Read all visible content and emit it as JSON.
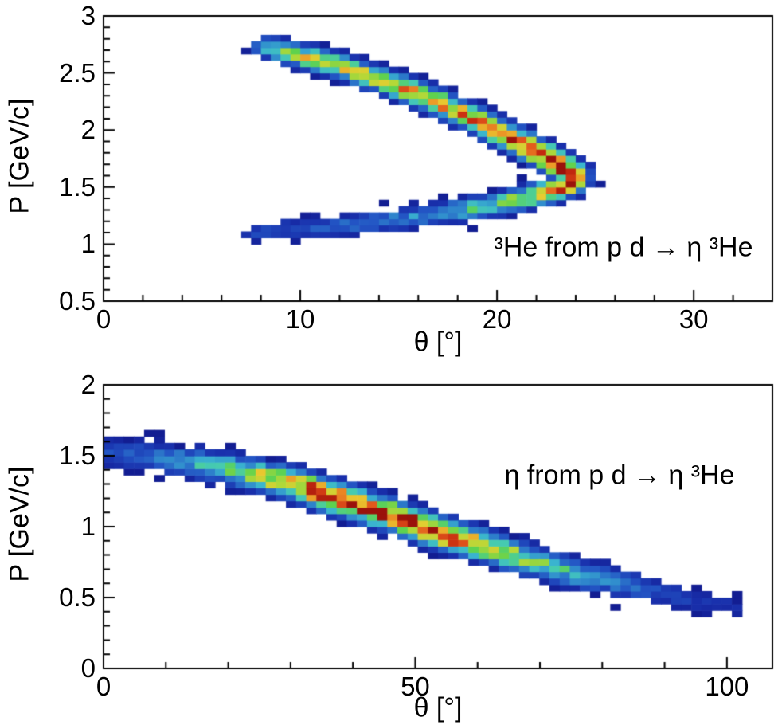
{
  "figure": {
    "background": "#ffffff",
    "axis_color": "#000000",
    "text_color": "#000000"
  },
  "palette": {
    "name": "root-rainbow",
    "stops": [
      [
        0.0,
        "#10188c"
      ],
      [
        0.1,
        "#1930ac"
      ],
      [
        0.2,
        "#2355c4"
      ],
      [
        0.3,
        "#2f86cc"
      ],
      [
        0.38,
        "#3ab4cf"
      ],
      [
        0.46,
        "#47ccad"
      ],
      [
        0.54,
        "#5ed24e"
      ],
      [
        0.64,
        "#b4d838"
      ],
      [
        0.73,
        "#e8cc30"
      ],
      [
        0.8,
        "#eb9426"
      ],
      [
        0.87,
        "#e2561b"
      ],
      [
        0.94,
        "#c62a10"
      ],
      [
        1.0,
        "#9a120b"
      ]
    ]
  },
  "chart_data": [
    {
      "type": "heatmap",
      "particle": "3He",
      "annotation": "³He from p d → η ³He",
      "xlabel": "θ [°]",
      "ylabel": "P [GeV/c]",
      "xlim": [
        0,
        34
      ],
      "ylim": [
        0.5,
        3
      ],
      "x_ticks": [
        {
          "v": 0,
          "label": "0"
        },
        {
          "v": 10,
          "label": "10"
        },
        {
          "v": 20,
          "label": "20"
        },
        {
          "v": 30,
          "label": "30"
        }
      ],
      "x_minor_step": 2,
      "y_ticks": [
        {
          "v": 0.5,
          "label": "0.5"
        },
        {
          "v": 1,
          "label": "1"
        },
        {
          "v": 1.5,
          "label": "1.5"
        },
        {
          "v": 2,
          "label": "2"
        },
        {
          "v": 2.5,
          "label": "2.5"
        },
        {
          "v": 3,
          "label": "3"
        }
      ],
      "y_minor_step": 0.1,
      "bins": {
        "nx": 68,
        "ny": 45
      },
      "band_sigma": {
        "theta": 0.55,
        "p": 0.06
      },
      "ridge_points": [
        [
          8.4,
          2.72,
          0.4
        ],
        [
          9.4,
          2.68,
          0.55
        ],
        [
          10.4,
          2.64,
          0.65
        ],
        [
          11.4,
          2.59,
          0.62
        ],
        [
          12.4,
          2.54,
          0.68
        ],
        [
          13.4,
          2.48,
          0.74
        ],
        [
          14.4,
          2.42,
          0.7
        ],
        [
          15.4,
          2.36,
          0.72
        ],
        [
          16.4,
          2.29,
          0.76
        ],
        [
          17.4,
          2.21,
          0.78
        ],
        [
          18.4,
          2.13,
          0.82
        ],
        [
          19.4,
          2.05,
          0.86
        ],
        [
          20.4,
          1.96,
          0.9
        ],
        [
          21.4,
          1.87,
          0.94
        ],
        [
          22.3,
          1.79,
          0.98
        ],
        [
          23.1,
          1.71,
          1.0
        ],
        [
          23.7,
          1.63,
          1.0
        ],
        [
          23.8,
          1.57,
          0.95
        ],
        [
          23.3,
          1.5,
          0.85
        ],
        [
          22.4,
          1.45,
          0.7
        ],
        [
          21.2,
          1.4,
          0.58
        ],
        [
          19.8,
          1.35,
          0.48
        ],
        [
          18.2,
          1.3,
          0.4
        ],
        [
          16.6,
          1.26,
          0.33
        ],
        [
          15.0,
          1.22,
          0.28
        ],
        [
          13.4,
          1.19,
          0.24
        ],
        [
          11.8,
          1.16,
          0.21
        ],
        [
          10.2,
          1.14,
          0.18
        ],
        [
          8.8,
          1.12,
          0.16
        ],
        [
          7.8,
          1.11,
          0.15
        ]
      ]
    },
    {
      "type": "heatmap",
      "particle": "eta",
      "annotation": "η from p d → η ³He",
      "xlabel": "θ [°]",
      "ylabel": "P [GeV/c]",
      "xlim": [
        0,
        107.3
      ],
      "ylim": [
        0,
        2
      ],
      "x_ticks": [
        {
          "v": 0,
          "label": "0"
        },
        {
          "v": 50,
          "label": "50"
        },
        {
          "v": 100,
          "label": "100"
        }
      ],
      "x_minor_step": 10,
      "y_ticks": [
        {
          "v": 0,
          "label": "0"
        },
        {
          "v": 0.5,
          "label": "0.5"
        },
        {
          "v": 1,
          "label": "1"
        },
        {
          "v": 1.5,
          "label": "1.5"
        },
        {
          "v": 2,
          "label": "2"
        }
      ],
      "y_minor_step": 0.1,
      "bins": {
        "nx": 66,
        "ny": 44
      },
      "band_sigma": {
        "theta": 1.25,
        "p": 0.065
      },
      "ridge_points": [
        [
          0,
          1.53,
          0.18
        ],
        [
          4,
          1.51,
          0.22
        ],
        [
          8,
          1.49,
          0.26
        ],
        [
          12,
          1.47,
          0.32
        ],
        [
          16,
          1.44,
          0.4
        ],
        [
          20,
          1.41,
          0.5
        ],
        [
          24,
          1.37,
          0.62
        ],
        [
          28,
          1.33,
          0.75
        ],
        [
          32,
          1.28,
          0.88
        ],
        [
          36,
          1.22,
          0.97
        ],
        [
          40,
          1.17,
          1.0
        ],
        [
          44,
          1.11,
          1.0
        ],
        [
          48,
          1.05,
          1.0
        ],
        [
          52,
          0.99,
          0.96
        ],
        [
          56,
          0.93,
          0.9
        ],
        [
          60,
          0.88,
          0.8
        ],
        [
          64,
          0.82,
          0.68
        ],
        [
          68,
          0.77,
          0.56
        ],
        [
          72,
          0.72,
          0.46
        ],
        [
          76,
          0.67,
          0.37
        ],
        [
          80,
          0.63,
          0.29
        ],
        [
          84,
          0.59,
          0.23
        ],
        [
          88,
          0.55,
          0.18
        ],
        [
          92,
          0.51,
          0.14
        ],
        [
          96,
          0.48,
          0.11
        ],
        [
          100,
          0.46,
          0.09
        ],
        [
          102,
          0.45,
          0.08
        ]
      ]
    }
  ]
}
